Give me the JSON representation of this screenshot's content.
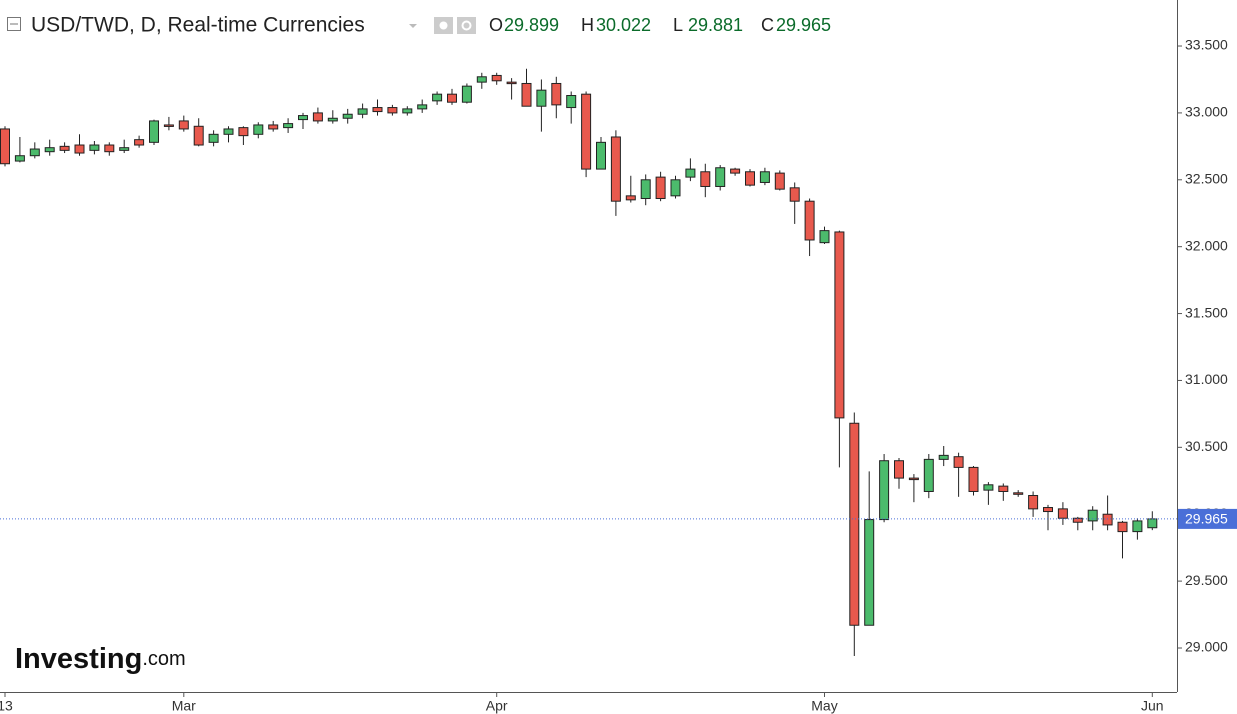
{
  "chart_data": {
    "type": "candlestick",
    "title": "USD/TWD, D, Real-time Currencies",
    "ohlc_labels": [
      "O",
      "H",
      "L",
      "C"
    ],
    "watermark": [
      "Investing",
      ".com"
    ],
    "categories": [
      "13",
      null,
      null,
      null,
      null,
      null,
      null,
      null,
      null,
      null,
      null,
      null,
      "Mar",
      null,
      null,
      null,
      null,
      null,
      null,
      null,
      null,
      null,
      null,
      null,
      null,
      null,
      null,
      null,
      null,
      null,
      null,
      null,
      null,
      "Apr",
      null,
      null,
      null,
      null,
      null,
      null,
      null,
      null,
      null,
      null,
      null,
      null,
      null,
      null,
      null,
      null,
      null,
      null,
      null,
      null,
      null,
      "May",
      null,
      null,
      null,
      null,
      null,
      null,
      null,
      null,
      null,
      null,
      null,
      null,
      null,
      null,
      null,
      null,
      null,
      null,
      null,
      null,
      null,
      "Jun"
    ],
    "open": [
      32.88,
      32.64,
      32.68,
      32.71,
      32.75,
      32.76,
      32.72,
      32.76,
      32.72,
      32.8,
      32.78,
      32.91,
      32.94,
      32.9,
      32.78,
      32.84,
      32.89,
      32.84,
      32.91,
      32.89,
      32.95,
      33.0,
      32.94,
      32.96,
      32.99,
      33.04,
      33.04,
      33.0,
      33.03,
      33.09,
      33.14,
      33.08,
      33.23,
      33.28,
      33.23,
      33.22,
      33.05,
      33.22,
      33.04,
      33.14,
      32.58,
      32.82,
      32.38,
      32.36,
      32.52,
      32.38,
      32.52,
      32.56,
      32.45,
      32.58,
      32.56,
      32.48,
      32.55,
      32.44,
      32.34,
      32.03,
      32.11,
      30.68,
      29.17,
      29.96,
      30.4,
      30.27,
      30.17,
      30.41,
      30.43,
      30.35,
      30.18,
      30.21,
      30.16,
      30.14,
      30.05,
      30.04,
      29.97,
      29.95,
      30.0,
      29.94,
      29.87,
      29.899
    ],
    "high": [
      32.9,
      32.82,
      32.78,
      32.8,
      32.78,
      32.84,
      32.79,
      32.78,
      32.8,
      32.83,
      32.95,
      32.97,
      32.98,
      32.96,
      32.87,
      32.9,
      32.9,
      32.93,
      32.94,
      32.96,
      33.0,
      33.04,
      33.02,
      33.03,
      33.07,
      33.1,
      33.06,
      33.05,
      33.1,
      33.16,
      33.18,
      33.22,
      33.3,
      33.3,
      33.26,
      33.33,
      33.25,
      33.27,
      33.16,
      33.16,
      32.82,
      32.87,
      32.53,
      32.54,
      32.56,
      32.53,
      32.66,
      32.62,
      32.61,
      32.59,
      32.58,
      32.59,
      32.57,
      32.48,
      32.36,
      32.15,
      32.12,
      30.76,
      30.32,
      30.45,
      30.42,
      30.3,
      30.45,
      30.51,
      30.46,
      30.36,
      30.24,
      30.23,
      30.18,
      30.17,
      30.07,
      30.09,
      29.98,
      30.06,
      30.14,
      29.95,
      29.97,
      30.022
    ],
    "low": [
      32.6,
      32.63,
      32.66,
      32.68,
      32.7,
      32.68,
      32.69,
      32.68,
      32.7,
      32.74,
      32.76,
      32.87,
      32.86,
      32.75,
      32.75,
      32.78,
      32.76,
      32.81,
      32.86,
      32.85,
      32.88,
      32.92,
      32.92,
      32.92,
      32.96,
      32.98,
      32.98,
      32.98,
      33.0,
      33.06,
      33.06,
      33.07,
      33.18,
      33.21,
      33.1,
      33.05,
      32.86,
      32.96,
      32.92,
      32.52,
      32.58,
      32.23,
      32.33,
      32.31,
      32.34,
      32.36,
      32.49,
      32.37,
      32.42,
      32.53,
      32.45,
      32.46,
      32.42,
      32.17,
      31.93,
      32.02,
      30.35,
      28.94,
      29.17,
      29.94,
      30.19,
      30.09,
      30.12,
      30.36,
      30.13,
      30.14,
      30.07,
      30.1,
      30.13,
      29.98,
      29.88,
      29.92,
      29.88,
      29.88,
      29.88,
      29.67,
      29.81,
      29.881
    ],
    "close": [
      32.62,
      32.68,
      32.73,
      32.74,
      32.72,
      32.7,
      32.76,
      32.71,
      32.74,
      32.76,
      32.94,
      32.9,
      32.88,
      32.76,
      32.84,
      32.88,
      32.83,
      32.91,
      32.88,
      32.92,
      32.98,
      32.94,
      32.96,
      32.99,
      33.03,
      33.01,
      33.0,
      33.03,
      33.06,
      33.14,
      33.08,
      33.2,
      33.27,
      33.24,
      33.22,
      33.05,
      33.17,
      33.06,
      33.13,
      32.58,
      32.78,
      32.34,
      32.35,
      32.5,
      32.36,
      32.5,
      32.58,
      32.45,
      32.59,
      32.55,
      32.46,
      32.56,
      32.43,
      32.34,
      32.05,
      32.12,
      30.72,
      29.17,
      29.96,
      30.4,
      30.27,
      30.26,
      30.41,
      30.44,
      30.35,
      30.17,
      30.22,
      30.17,
      30.15,
      30.04,
      30.02,
      29.97,
      29.94,
      30.03,
      29.92,
      29.87,
      29.95,
      29.965
    ],
    "up_color": "#4cbb6c",
    "down_color": "#e8594d",
    "ohlc_value_color": "#0b6b2a",
    "last_price_color": "#4a6fd8",
    "ylim": [
      28.671,
      33.844
    ],
    "yticks": [
      {
        "value": 29,
        "label": "29.000"
      },
      {
        "value": 29.5,
        "label": "29.500"
      },
      {
        "value": 30,
        "label": "30.000"
      },
      {
        "value": 30.5,
        "label": "30.500"
      },
      {
        "value": 31,
        "label": "31.000"
      },
      {
        "value": 31.5,
        "label": "31.500"
      },
      {
        "value": 32,
        "label": "32.000"
      },
      {
        "value": 32.5,
        "label": "32.500"
      },
      {
        "value": 33,
        "label": "33.000"
      },
      {
        "value": 33.5,
        "label": "33.500"
      }
    ]
  }
}
